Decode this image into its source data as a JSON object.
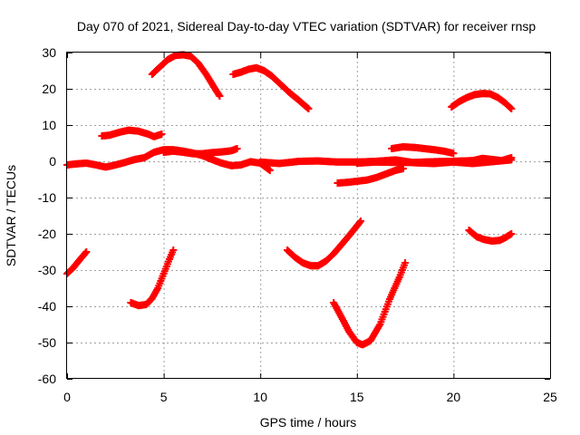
{
  "chart_data": {
    "type": "scatter",
    "title": "Day 070 of 2021, Sidereal Day-to-day VTEC variation (SDTVAR) for receiver rnsp",
    "xlabel": "GPS time / hours",
    "ylabel": "SDTVAR / TECUs",
    "xlim": [
      0,
      25
    ],
    "ylim": [
      -60,
      30
    ],
    "xticks": [
      "0",
      "5",
      "10",
      "15",
      "20",
      "25"
    ],
    "yticks": [
      "30",
      "20",
      "10",
      "0",
      "-10",
      "-20",
      "-30",
      "-40",
      "-50",
      "-60"
    ],
    "xtick_values": [
      0,
      5,
      10,
      15,
      20,
      25
    ],
    "ytick_values": [
      30,
      20,
      10,
      0,
      -10,
      -20,
      -30,
      -40,
      -50,
      -60
    ],
    "grid": true,
    "marker_color": "#ff0000",
    "series": [
      {
        "values": [
          [
            0.0,
            -31
          ],
          [
            0.3,
            -29.5
          ],
          [
            0.6,
            -27.5
          ],
          [
            1.0,
            -25
          ]
        ]
      },
      {
        "values": [
          [
            1.8,
            7
          ],
          [
            2.2,
            7.2
          ],
          [
            2.7,
            8
          ],
          [
            3.2,
            8.6
          ],
          [
            3.7,
            8.3
          ],
          [
            4.2,
            7.5
          ],
          [
            4.5,
            6.8
          ],
          [
            4.9,
            7.5
          ]
        ]
      },
      {
        "values": [
          [
            0.0,
            -1
          ],
          [
            0.5,
            -0.7
          ],
          [
            1.0,
            -0.5
          ],
          [
            1.5,
            -1
          ],
          [
            2.0,
            -1.6
          ],
          [
            2.5,
            -1
          ],
          [
            3.0,
            -0.3
          ],
          [
            3.5,
            0.5
          ],
          [
            4.0,
            1
          ],
          [
            4.5,
            2.5
          ],
          [
            5.0,
            3.2
          ],
          [
            5.5,
            3.2
          ],
          [
            6.0,
            2.8
          ],
          [
            6.5,
            2.3
          ],
          [
            7.0,
            1.6
          ],
          [
            7.5,
            0.5
          ],
          [
            8.0,
            -0.5
          ],
          [
            8.5,
            -1.2
          ],
          [
            9.0,
            -1
          ],
          [
            9.5,
            -0.1
          ],
          [
            10.0,
            -0.5
          ],
          [
            10.5,
            -2.5
          ]
        ]
      },
      {
        "values": [
          [
            5.0,
            2.5
          ],
          [
            5.5,
            2.8
          ],
          [
            6.0,
            2.5
          ],
          [
            6.5,
            2.1
          ],
          [
            7.0,
            2.1
          ],
          [
            7.5,
            2.4
          ],
          [
            8.0,
            2.6
          ],
          [
            8.5,
            2.9
          ],
          [
            8.8,
            3.5
          ]
        ]
      },
      {
        "values": [
          [
            10.0,
            -0.2
          ],
          [
            11.0,
            -0.6
          ],
          [
            12.0,
            0
          ],
          [
            13.0,
            0.1
          ],
          [
            14.0,
            -0.2
          ],
          [
            15.0,
            -0.2
          ],
          [
            16.0,
            0
          ],
          [
            17.0,
            0.4
          ],
          [
            18.0,
            -0.4
          ],
          [
            19.0,
            -0.6
          ],
          [
            20.0,
            -0.2
          ],
          [
            21.0,
            -0.6
          ],
          [
            22.0,
            -0.1
          ],
          [
            23.0,
            0.4
          ]
        ]
      },
      {
        "values": [
          [
            15.0,
            -0.5
          ],
          [
            16.0,
            -0.2
          ],
          [
            17.0,
            -0.3
          ],
          [
            18.0,
            -0.3
          ],
          [
            19.0,
            -0.1
          ],
          [
            20.0,
            0
          ],
          [
            21.0,
            0.2
          ],
          [
            21.5,
            0.8
          ],
          [
            22.0,
            0.5
          ],
          [
            22.5,
            0.2
          ],
          [
            23.0,
            1
          ]
        ]
      },
      {
        "values": [
          [
            14.0,
            -6
          ],
          [
            14.5,
            -5.8
          ],
          [
            15.0,
            -5.5
          ],
          [
            15.5,
            -5.2
          ],
          [
            16.0,
            -4.5
          ],
          [
            16.5,
            -3.5
          ],
          [
            17.0,
            -2.5
          ],
          [
            17.4,
            -2
          ]
        ]
      },
      {
        "values": [
          [
            16.8,
            3.5
          ],
          [
            17.4,
            4
          ],
          [
            18.0,
            3.8
          ],
          [
            18.5,
            3.5
          ],
          [
            19.0,
            3.2
          ],
          [
            19.5,
            2.8
          ],
          [
            20.0,
            2.2
          ]
        ]
      },
      {
        "values": [
          [
            4.4,
            24
          ],
          [
            4.8,
            26
          ],
          [
            5.2,
            28
          ],
          [
            5.6,
            29.2
          ],
          [
            6.0,
            29.4
          ],
          [
            6.4,
            29
          ],
          [
            6.8,
            27
          ],
          [
            7.2,
            24
          ],
          [
            7.6,
            20.5
          ],
          [
            7.9,
            18
          ]
        ]
      },
      {
        "values": [
          [
            8.6,
            24
          ],
          [
            9.0,
            24.6
          ],
          [
            9.4,
            25.4
          ],
          [
            9.8,
            25.8
          ],
          [
            10.2,
            25
          ],
          [
            10.6,
            23.5
          ],
          [
            11.0,
            21.5
          ],
          [
            11.5,
            19
          ],
          [
            12.0,
            16.8
          ],
          [
            12.5,
            14.5
          ]
        ]
      },
      {
        "values": [
          [
            19.9,
            15
          ],
          [
            20.3,
            16.5
          ],
          [
            20.7,
            17.6
          ],
          [
            21.1,
            18.4
          ],
          [
            21.5,
            18.7
          ],
          [
            21.9,
            18.6
          ],
          [
            22.3,
            17.6
          ],
          [
            22.7,
            16
          ],
          [
            23.0,
            14.5
          ]
        ]
      },
      {
        "values": [
          [
            3.3,
            -39
          ],
          [
            3.7,
            -39.8
          ],
          [
            4.1,
            -39.5
          ],
          [
            4.4,
            -37.8
          ],
          [
            4.7,
            -35
          ],
          [
            5.0,
            -31
          ],
          [
            5.3,
            -27
          ],
          [
            5.5,
            -24.5
          ]
        ]
      },
      {
        "values": [
          [
            11.4,
            -24.5
          ],
          [
            11.8,
            -26.5
          ],
          [
            12.2,
            -28
          ],
          [
            12.6,
            -28.8
          ],
          [
            13.0,
            -28.8
          ],
          [
            13.4,
            -27.5
          ],
          [
            13.8,
            -25.5
          ],
          [
            14.2,
            -23
          ],
          [
            14.6,
            -20.5
          ],
          [
            15.2,
            -16.5
          ]
        ]
      },
      {
        "values": [
          [
            13.8,
            -39
          ],
          [
            14.2,
            -43
          ],
          [
            14.6,
            -47
          ],
          [
            15.0,
            -50
          ],
          [
            15.3,
            -50.6
          ],
          [
            15.7,
            -49.5
          ],
          [
            16.2,
            -45
          ],
          [
            16.7,
            -38
          ],
          [
            17.2,
            -32
          ],
          [
            17.5,
            -28
          ]
        ]
      },
      {
        "values": [
          [
            20.8,
            -19
          ],
          [
            21.2,
            -20.8
          ],
          [
            21.6,
            -21.6
          ],
          [
            22.0,
            -22
          ],
          [
            22.4,
            -21.8
          ],
          [
            22.7,
            -21
          ],
          [
            23.0,
            -20
          ]
        ]
      }
    ]
  }
}
